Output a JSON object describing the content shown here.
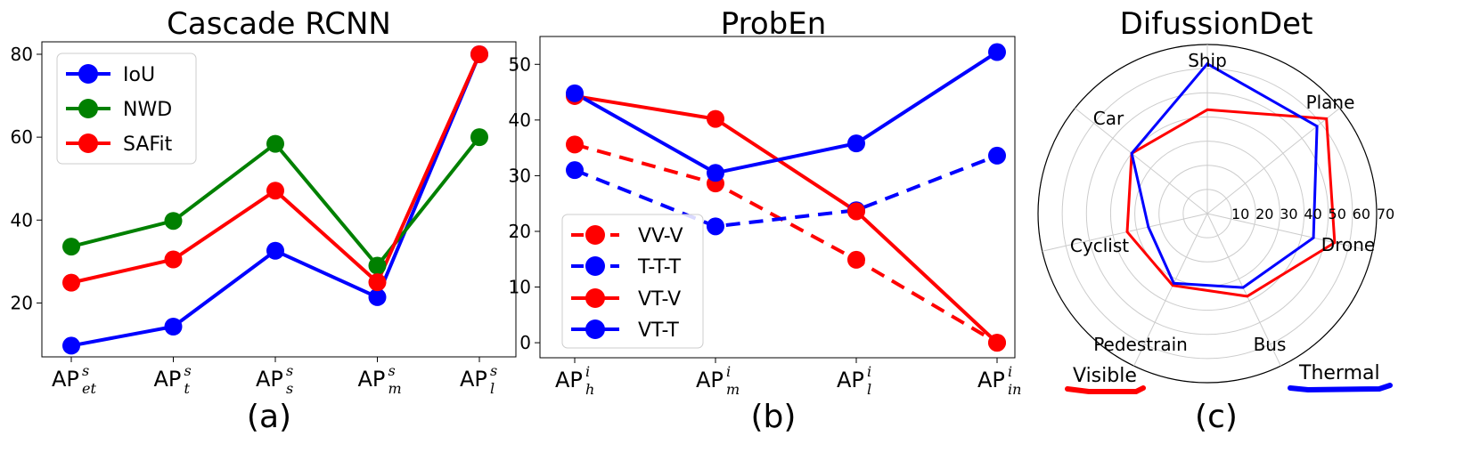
{
  "chart_data": [
    {
      "type": "line",
      "title": "Cascade RCNN",
      "caption": "(a)",
      "categories": [
        {
          "base": "AP",
          "sup": "s",
          "sub": "et"
        },
        {
          "base": "AP",
          "sup": "s",
          "sub": "t"
        },
        {
          "base": "AP",
          "sup": "s",
          "sub": "s"
        },
        {
          "base": "AP",
          "sup": "s",
          "sub": "m"
        },
        {
          "base": "AP",
          "sup": "s",
          "sub": "l"
        }
      ],
      "ylim": [
        7,
        83
      ],
      "yticks": [
        "20",
        "40",
        "60",
        "80"
      ],
      "legend_position": "top-left",
      "series": [
        {
          "name": "IoU",
          "color": "#0000ff",
          "dashed": false,
          "values": [
            9.7,
            14.3,
            32.6,
            21.4,
            80.0
          ]
        },
        {
          "name": "NWD",
          "color": "#008000",
          "dashed": false,
          "values": [
            33.6,
            39.8,
            58.4,
            29.0,
            60.0
          ]
        },
        {
          "name": "SAFit",
          "color": "#ff0000",
          "dashed": false,
          "values": [
            24.9,
            30.5,
            47.1,
            25.0,
            80.0
          ]
        }
      ]
    },
    {
      "type": "line",
      "title": "ProbEn",
      "caption": "(b)",
      "categories": [
        {
          "base": "AP",
          "sup": "i",
          "sub": "h"
        },
        {
          "base": "AP",
          "sup": "i",
          "sub": "m"
        },
        {
          "base": "AP",
          "sup": "i",
          "sub": "l"
        },
        {
          "base": "AP",
          "sup": "i",
          "sub": "in"
        }
      ],
      "ylim": [
        -2.7,
        55
      ],
      "yticks": [
        "0",
        "10",
        "20",
        "30",
        "40",
        "50"
      ],
      "legend_position": "bottom-left",
      "series": [
        {
          "name": "VV-V",
          "color": "#ff0000",
          "dashed": true,
          "values": [
            35.6,
            28.6,
            14.9,
            0.0
          ]
        },
        {
          "name": "T-T-T",
          "color": "#0000ff",
          "dashed": true,
          "values": [
            31.0,
            20.9,
            23.8,
            33.6
          ]
        },
        {
          "name": "VT-V",
          "color": "#ff0000",
          "dashed": false,
          "values": [
            44.3,
            40.2,
            23.6,
            0.0
          ]
        },
        {
          "name": "VT-T",
          "color": "#0000ff",
          "dashed": false,
          "values": [
            44.8,
            30.5,
            35.8,
            52.2
          ]
        }
      ]
    },
    {
      "type": "radar",
      "title": "DifussionDet",
      "caption": "(c)",
      "categories": [
        "Ship",
        "Plane",
        "Drone",
        "Bus",
        "Pedestrain",
        "Cyclist",
        "Car"
      ],
      "rmax": 70,
      "rticks": [
        "10",
        "20",
        "30",
        "40",
        "50",
        "60",
        "70"
      ],
      "series": [
        {
          "name": "Visible",
          "color": "#ff0000",
          "values": [
            43,
            63,
            54,
            38,
            33,
            34,
            40
          ]
        },
        {
          "name": "Thermal",
          "color": "#0000ff",
          "values": [
            62,
            58,
            45,
            34,
            32,
            25,
            40
          ]
        }
      ]
    }
  ]
}
